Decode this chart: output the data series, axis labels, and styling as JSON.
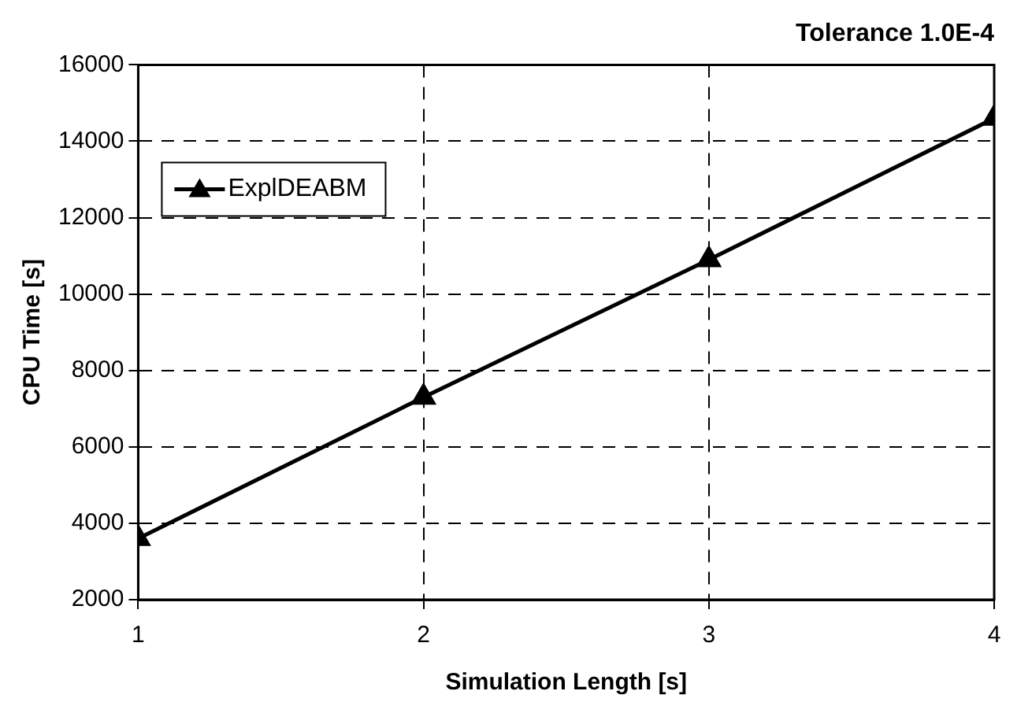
{
  "chart_data": {
    "type": "line",
    "title": "Tolerance 1.0E-4",
    "xlabel": "Simulation Length [s]",
    "ylabel": "CPU Time [s]",
    "x": [
      1,
      2,
      3,
      4
    ],
    "series": [
      {
        "name": "ExplDEABM",
        "color": "#000000",
        "values": [
          3600,
          7300,
          10900,
          14600
        ]
      }
    ],
    "xlim": [
      1,
      4
    ],
    "xticks": [
      1,
      2,
      3,
      4
    ],
    "ylim": [
      2000,
      16000
    ],
    "yticks": [
      2000,
      4000,
      6000,
      8000,
      10000,
      12000,
      14000,
      16000
    ],
    "grid": true,
    "legend": "top left",
    "marker": "triangle",
    "line_style": "solid"
  }
}
